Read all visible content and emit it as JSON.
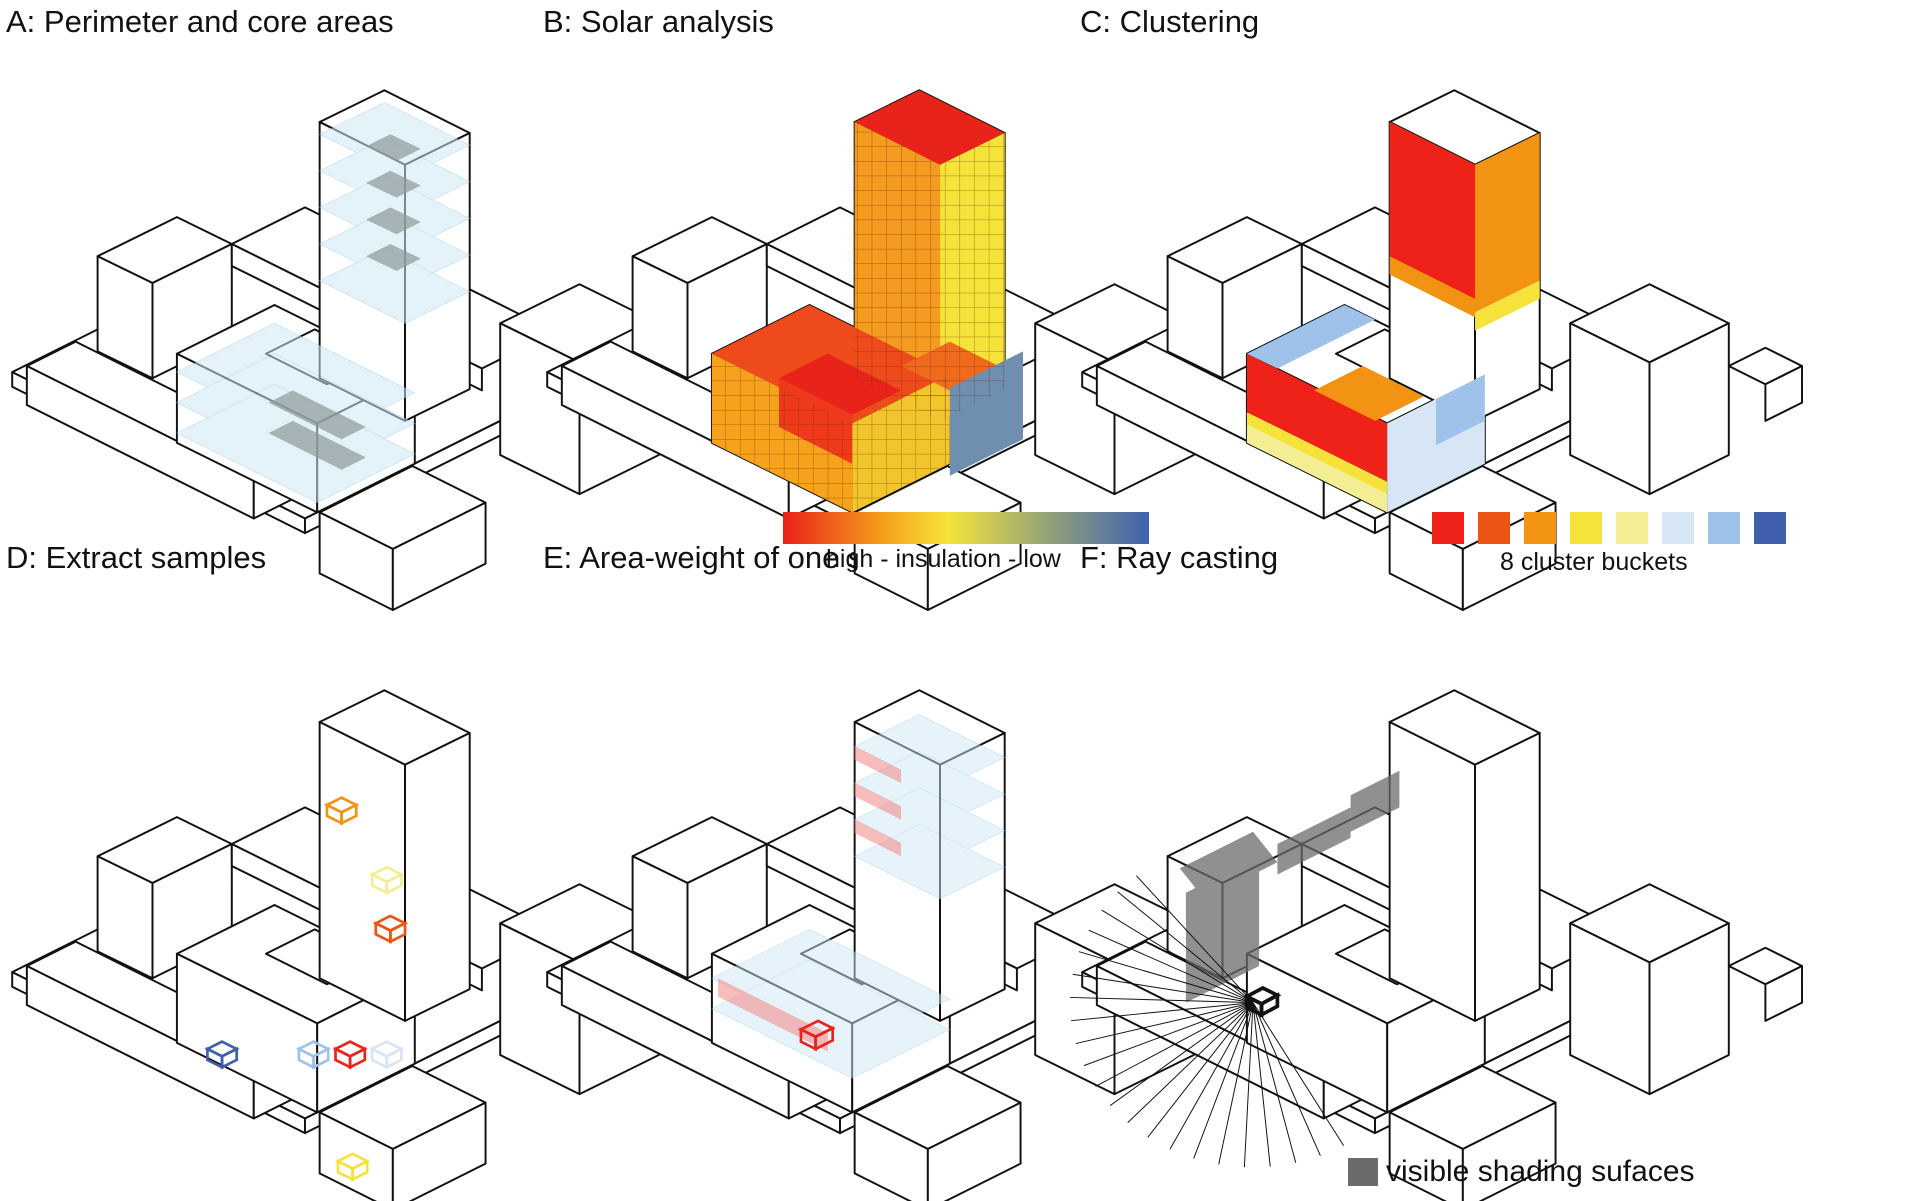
{
  "panels": {
    "a": {
      "title": "A: Perimeter and core areas"
    },
    "b": {
      "title": "B: Solar analysis",
      "legend_label": "high - insulation - low"
    },
    "c": {
      "title": "C: Clustering",
      "legend_label": "8 cluster buckets"
    },
    "d": {
      "title": "D: Extract samples"
    },
    "e": {
      "title": "E: Area-weight of one sample"
    },
    "f": {
      "title": "F: Ray casting",
      "legend_label": "visible shading sufaces"
    }
  },
  "colors": {
    "gradient": [
      "#e8231a",
      "#f7a21d",
      "#f6e33a",
      "#9ba874",
      "#3f61b0"
    ],
    "cluster_buckets": [
      "#ee2218",
      "#ea5513",
      "#f39314",
      "#f5e23b",
      "#f3ee93",
      "#d6e6f5",
      "#9ec2ea",
      "#3f5fac"
    ],
    "zone_fill": "#cfe8f6",
    "core_fill": "#8c9a9a",
    "highlight_red": "#f29090",
    "shading_gray": "#6b6b6b"
  }
}
